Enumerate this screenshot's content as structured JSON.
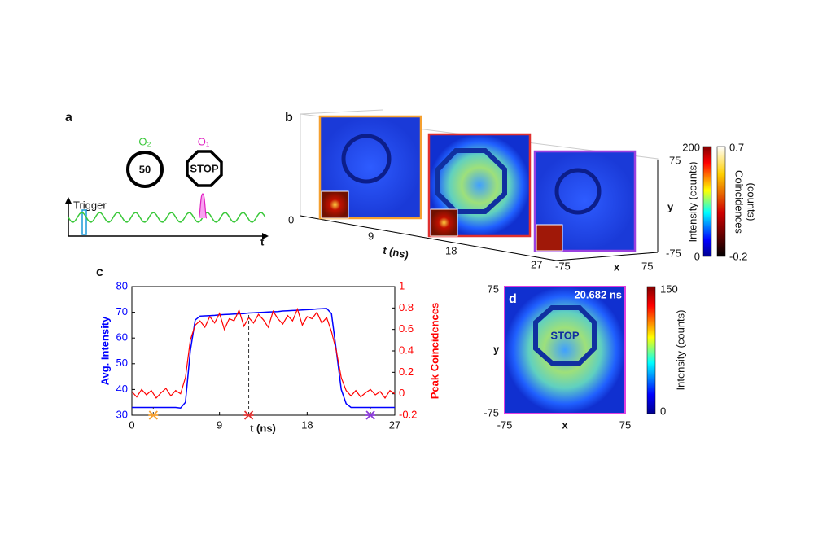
{
  "panels": {
    "a": {
      "label": "a",
      "trigger": "Trigger",
      "o2": "O₂",
      "o1": "O₁",
      "sign_50": "50",
      "sign_stop": "STOP",
      "t_axis": "t"
    },
    "b": {
      "label": "b",
      "y_ticks": [
        75,
        -75
      ],
      "y_label": "y",
      "t_ticks": [
        0,
        9,
        18,
        27
      ],
      "t_label": "t (ns)",
      "x_ticks": [
        -75,
        75
      ],
      "x_label": "x",
      "colorbar_intensity": {
        "ticks": [
          200,
          0
        ],
        "label": "Intensity (counts)"
      },
      "colorbar_coincidences": {
        "ticks": [
          0.7,
          -0.2
        ],
        "label_lines": [
          "Coincidences",
          "(counts)"
        ]
      }
    },
    "d": {
      "label": "d",
      "time": "20.682 ns",
      "y_ticks": [
        75,
        -75
      ],
      "y_label": "y",
      "x_ticks": [
        -75,
        75
      ],
      "x_label": "x",
      "colorbar": {
        "ticks": [
          150,
          0
        ],
        "label": "Intensity (counts)"
      }
    },
    "c": {
      "label": "c"
    }
  },
  "chart_data": {
    "type": "line",
    "xlabel": "t (ns)",
    "ylabel": "Avg. Intensity",
    "y2label": "Peak Coincidences",
    "xlim": [
      0,
      27
    ],
    "xticks": [
      0,
      9,
      18,
      27
    ],
    "ylim": [
      30,
      80
    ],
    "yticks": [
      30,
      40,
      50,
      60,
      70,
      80
    ],
    "y2lim": [
      -0.2,
      1
    ],
    "y2ticks": [
      -0.2,
      0,
      0.2,
      0.4,
      0.6,
      0.8,
      1
    ],
    "x": [
      0,
      0.5,
      1,
      1.5,
      2,
      2.5,
      3,
      3.5,
      4,
      4.5,
      5,
      5.5,
      6,
      6.5,
      7,
      7.5,
      8,
      8.5,
      9,
      9.5,
      10,
      10.5,
      11,
      11.5,
      12,
      12.5,
      13,
      13.5,
      14,
      14.5,
      15,
      15.5,
      16,
      16.5,
      17,
      17.5,
      18,
      18.5,
      19,
      19.5,
      20,
      20.5,
      21,
      21.5,
      22,
      22.5,
      23,
      23.5,
      24,
      24.5,
      25,
      25.5,
      26,
      26.5,
      27
    ],
    "series": [
      {
        "name": "Avg. Intensity",
        "color": "#0000ff",
        "values": [
          33,
          33,
          33,
          33,
          33,
          33,
          33,
          33,
          33,
          33,
          32.8,
          35,
          55,
          67,
          68.5,
          68.6,
          68.7,
          68.8,
          69,
          69.1,
          69.2,
          69.3,
          69.4,
          69.5,
          69.7,
          69.8,
          69.9,
          70,
          70.1,
          70.2,
          70.3,
          70.5,
          70.6,
          70.7,
          70.8,
          70.9,
          71,
          71.1,
          71.3,
          71.4,
          71.5,
          69.5,
          55,
          40,
          34.5,
          33,
          33,
          33,
          33,
          33,
          33,
          33,
          33,
          33,
          33
        ]
      },
      {
        "name": "Peak Coincidences",
        "color": "#ff0000",
        "axis": "y2",
        "values": [
          0.02,
          -0.03,
          0.04,
          -0.01,
          0.03,
          -0.04,
          0.01,
          0.05,
          -0.02,
          0.03,
          0,
          0.15,
          0.5,
          0.64,
          0.68,
          0.62,
          0.72,
          0.66,
          0.75,
          0.6,
          0.7,
          0.68,
          0.78,
          0.63,
          0.71,
          0.66,
          0.74,
          0.69,
          0.62,
          0.77,
          0.7,
          0.65,
          0.73,
          0.68,
          0.79,
          0.64,
          0.72,
          0.7,
          0.76,
          0.66,
          0.71,
          0.58,
          0.4,
          0.15,
          0.03,
          -0.02,
          0.03,
          -0.03,
          0.01,
          0.04,
          -0.01,
          0.02,
          -0.04,
          0.03,
          0
        ]
      }
    ],
    "markers": [
      {
        "x": 2.2,
        "color": "#f5a030"
      },
      {
        "x": 12,
        "color": "#e03030"
      },
      {
        "x": 24.5,
        "color": "#8a3ad8"
      }
    ]
  }
}
